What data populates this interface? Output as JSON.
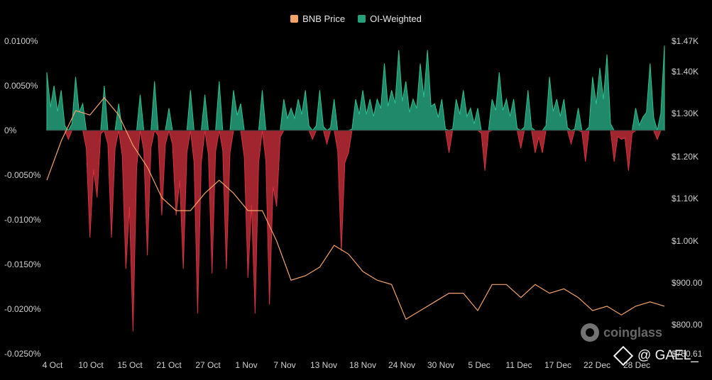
{
  "legend": [
    {
      "name": "BNB Price",
      "color": "#f0a36b"
    },
    {
      "name": "OI-Weighted",
      "color": "#26a17b"
    }
  ],
  "watermark": {
    "text": "coinglass",
    "icon": "coinglass-logo-icon"
  },
  "signature": {
    "text": "@ GAEL_",
    "icon": "diamond-icon"
  },
  "colors": {
    "positive": "#26a17b",
    "negative": "#b22934",
    "price": "#f0a36b",
    "background": "#000000"
  },
  "chart_data": {
    "type": "area",
    "x_tick_labels": [
      "4 Oct",
      "10 Oct",
      "15 Oct",
      "21 Oct",
      "27 Oct",
      "1 Nov",
      "7 Nov",
      "13 Nov",
      "18 Nov",
      "24 Nov",
      "30 Nov",
      "5 Dec",
      "11 Dec",
      "17 Dec",
      "22 Dec",
      "28 Dec"
    ],
    "y_left": {
      "ticks": [
        "0.0100%",
        "0.0050%",
        "0%",
        "-0.0050%",
        "-0.0100%",
        "-0.0150%",
        "-0.0200%",
        "-0.0250%"
      ],
      "range": [
        -0.025,
        0.01
      ]
    },
    "y_right": {
      "ticks": [
        "$1.47K",
        "$1.40K",
        "$1.30K",
        "$1.20K",
        "$1.10K",
        "$1.00K",
        "$900.00",
        "$800.00",
        "$750.61"
      ],
      "range": [
        750.61,
        1470
      ]
    },
    "grid": false,
    "legend_position": "top-center",
    "series": [
      {
        "name": "OI-Weighted",
        "axis": "left",
        "unit": "%",
        "x_days": [
          0,
          1,
          2,
          3,
          4,
          5,
          6,
          7,
          8,
          9,
          10,
          11,
          12,
          13,
          14,
          15,
          16,
          17,
          18,
          19,
          20,
          21,
          22,
          23,
          24,
          25,
          26,
          27,
          28,
          29,
          30,
          31,
          32,
          33,
          34,
          35,
          36,
          37,
          38,
          39,
          40,
          41,
          42,
          43,
          44,
          45,
          46,
          47,
          48,
          49,
          50,
          51,
          52,
          53,
          54,
          55,
          56,
          57,
          58,
          59,
          60,
          61,
          62,
          63,
          64,
          65,
          66,
          67,
          68,
          69,
          70,
          71,
          72,
          73,
          74,
          75,
          76,
          77,
          78,
          79,
          80,
          81,
          82,
          83,
          84,
          85,
          86
        ],
        "values": [
          0.0065,
          0.005,
          0.0045,
          -0.001,
          0.006,
          0.003,
          -0.012,
          -0.0075,
          0.005,
          -0.012,
          0.003,
          -0.0155,
          -0.0225,
          0.004,
          -0.014,
          0.0055,
          -0.0095,
          0.0025,
          -0.0095,
          -0.0155,
          0.0045,
          -0.0205,
          0.004,
          -0.016,
          0.0055,
          -0.0155,
          0.0045,
          0.003,
          -0.0165,
          -0.0205,
          0.0045,
          -0.0195,
          -0.0085,
          0.0035,
          0.0025,
          0.0035,
          0.0045,
          -0.001,
          0.0045,
          -0.0015,
          0.0035,
          -0.0135,
          -0.0025,
          0.0035,
          0.0045,
          0.0035,
          0.0035,
          0.0075,
          0.0045,
          0.009,
          0.0055,
          0.0035,
          0.0075,
          0.009,
          0.003,
          0.0035,
          -0.0025,
          0.0035,
          0.0045,
          0.0025,
          0.0025,
          -0.0045,
          0.0035,
          0.0065,
          0.0035,
          0.0035,
          -0.002,
          0.0045,
          -0.0025,
          -0.0025,
          0.006,
          0.0035,
          0.0035,
          -0.0015,
          0.0025,
          -0.0035,
          0.006,
          0.007,
          0.0085,
          -0.0035,
          -0.001,
          -0.0045,
          0.0025,
          0.0015,
          0.0075,
          -0.001,
          0.0095
        ]
      },
      {
        "name": "BNB Price",
        "axis": "right",
        "unit": "USD",
        "x_days": [
          0,
          2,
          4,
          6,
          8,
          10,
          12,
          14,
          16,
          18,
          20,
          22,
          24,
          26,
          28,
          30,
          32,
          34,
          36,
          38,
          40,
          42,
          44,
          46,
          48,
          50,
          52,
          54,
          56,
          58,
          60,
          62,
          64,
          66,
          68,
          70,
          72,
          74,
          76,
          78,
          80,
          82,
          84,
          86
        ],
        "values": [
          1150,
          1240,
          1310,
          1300,
          1340,
          1300,
          1230,
          1180,
          1110,
          1080,
          1080,
          1120,
          1150,
          1120,
          1080,
          1080,
          1010,
          920,
          930,
          950,
          1000,
          980,
          940,
          920,
          910,
          830,
          850,
          870,
          890,
          890,
          850,
          910,
          910,
          880,
          910,
          890,
          900,
          880,
          850,
          860,
          840,
          860,
          870,
          860
        ]
      }
    ]
  }
}
